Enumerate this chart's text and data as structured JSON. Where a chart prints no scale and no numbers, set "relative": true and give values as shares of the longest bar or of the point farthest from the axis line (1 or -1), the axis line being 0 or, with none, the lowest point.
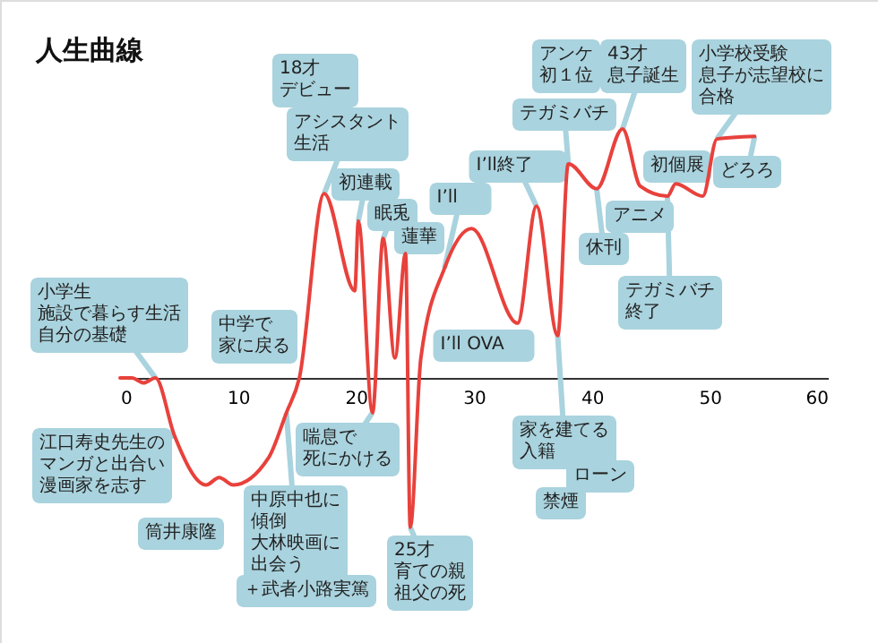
{
  "chart_data": {
    "type": "line",
    "title": "人生曲線",
    "relative": true,
    "x": [
      0,
      1,
      2,
      3,
      4.6,
      7.3,
      8.4,
      9.6,
      12.6,
      14.1,
      15.2,
      17.3,
      19.9,
      20.2,
      21.4,
      22.3,
      23.3,
      24.2,
      24.6,
      25.5,
      27.5,
      29.8,
      33.7,
      35.3,
      37.1,
      38.0,
      40.4,
      42.6,
      44.1,
      46.4,
      47.1,
      49.4,
      50.6,
      53.8
    ],
    "series": [
      {
        "color": "#e8413c",
        "values": [
          0,
          0,
          -0.02,
          0,
          -0.23,
          -0.43,
          -0.4,
          -0.43,
          -0.32,
          -0.14,
          0,
          0.74,
          0.35,
          0.63,
          -0.14,
          0.56,
          0.08,
          0.5,
          -0.6,
          0.08,
          0.44,
          0.6,
          0.22,
          0.69,
          0.17,
          0.86,
          0.76,
          1.0,
          0.77,
          0.73,
          0.78,
          0.73,
          0.96,
          0.97
        ]
      }
    ],
    "xlim": [
      0,
      60
    ],
    "xticks": [
      0,
      10,
      20,
      30,
      40,
      50,
      60
    ],
    "grid": false,
    "marker": "none",
    "line_style": "solid",
    "annotations": [
      {
        "text": "小学生施設で暮らす生活自分の基礎",
        "x": 3,
        "y": 0
      },
      "中学で家に戻る",
      "18才デビュー",
      {
        "text": "アシスタント生活",
        "x": 17.3,
        "y": 0.74
      },
      {
        "text": "初連載",
        "x": 20.2,
        "y": 0.63
      },
      {
        "text": "眠兎",
        "x": 22.3,
        "y": 0.56
      },
      {
        "text": "蓮華",
        "x": 24.2,
        "y": 0.5
      },
      {
        "text": "I’ll",
        "x": 27.5,
        "y": 0.44
      },
      {
        "text": "I’ll終了",
        "x": 35.3,
        "y": 0.69
      },
      "アンケ初１位",
      {
        "text": "テガミバチ",
        "x": 38.0,
        "y": 0.86
      },
      {
        "text": "43才息子誕生",
        "x": 42.6,
        "y": 1.0
      },
      {
        "text": "小学校受験息子が志望校に合格",
        "x": 50.6,
        "y": 0.96
      },
      "初個展",
      {
        "text": "どろろ",
        "x": 53.8,
        "y": 0.97
      },
      "アニメ",
      {
        "text": "休刊",
        "x": 40.4,
        "y": 0.76
      },
      {
        "text": "テガミバチ終了",
        "x": 46.4,
        "y": 0.73
      },
      "I’ll OVA",
      {
        "text": "江口寿史先生のマンガと出合い漫画家を志す",
        "x": 4.6,
        "y": -0.23
      },
      "筒井康隆",
      {
        "text": "中原中也に傾倒大林映画に出会う",
        "x": 14.1,
        "y": -0.14
      },
      "＋武者小路実篤",
      {
        "text": "喘息で死にかける",
        "x": 21.4,
        "y": -0.14
      },
      {
        "text": "25才育ての親祖父の死",
        "x": 24.6,
        "y": -0.6
      },
      {
        "text": "家を建てる入籍",
        "x": 37.1,
        "y": 0.17
      },
      "ローン",
      "禁煙"
    ]
  }
}
